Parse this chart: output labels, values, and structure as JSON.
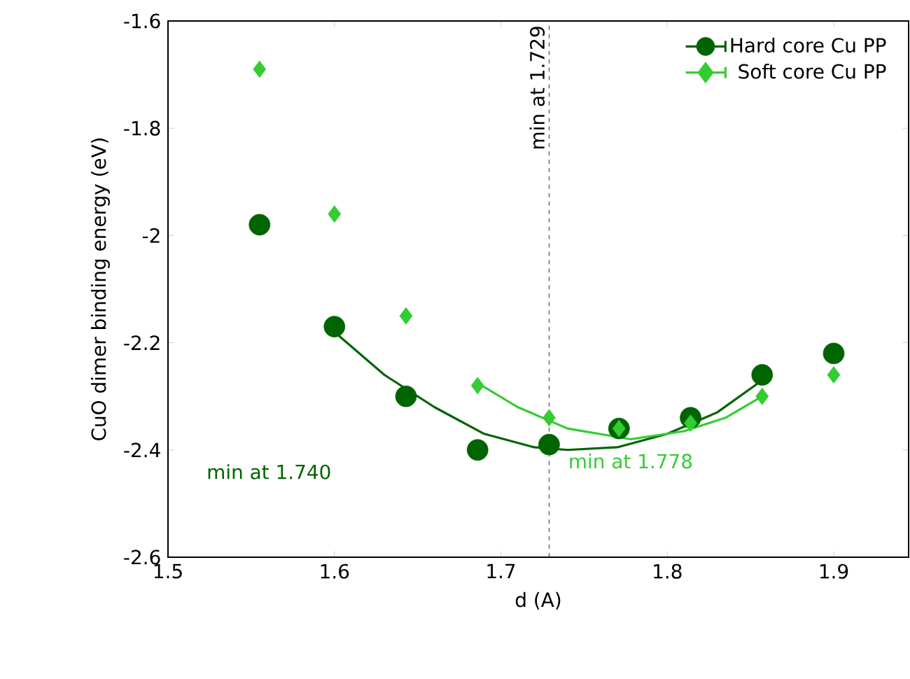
{
  "chart_data": {
    "type": "scatter",
    "xlabel": "d (A)",
    "ylabel": "CuO dimer binding energy (eV)",
    "xlim": [
      1.5,
      1.945
    ],
    "ylim": [
      -2.6,
      -1.6
    ],
    "xticks": [
      1.5,
      1.6,
      1.7,
      1.8,
      1.9
    ],
    "yticks": [
      -2.6,
      -2.4,
      -2.2,
      -2,
      -1.8,
      -1.6
    ],
    "legend": "top right",
    "grid": false,
    "series": [
      {
        "name": "Hard core Cu PP",
        "color": "#006400",
        "marker": "circle",
        "x": [
          1.555,
          1.6,
          1.643,
          1.686,
          1.729,
          1.771,
          1.814,
          1.857,
          1.9
        ],
        "values": [
          -1.98,
          -2.17,
          -2.3,
          -2.4,
          -2.39,
          -2.36,
          -2.34,
          -2.26,
          -2.22
        ]
      },
      {
        "name": "Soft core Cu PP",
        "color": "#33cc33",
        "marker": "diamond",
        "x": [
          1.555,
          1.6,
          1.643,
          1.686,
          1.729,
          1.771,
          1.814,
          1.857,
          1.9
        ],
        "values": [
          -1.69,
          -1.96,
          -2.15,
          -2.28,
          -2.34,
          -2.36,
          -2.35,
          -2.3,
          -2.26
        ]
      },
      {
        "type": "line",
        "color": "#006400",
        "marker": "none",
        "x": [
          1.6,
          1.63,
          1.66,
          1.69,
          1.72,
          1.74,
          1.77,
          1.8,
          1.83,
          1.857
        ],
        "values": [
          -2.18,
          -2.26,
          -2.32,
          -2.37,
          -2.395,
          -2.4,
          -2.395,
          -2.37,
          -2.33,
          -2.27
        ]
      },
      {
        "type": "line",
        "color": "#33cc33",
        "marker": "none",
        "x": [
          1.686,
          1.71,
          1.74,
          1.778,
          1.81,
          1.835,
          1.857
        ],
        "values": [
          -2.275,
          -2.32,
          -2.36,
          -2.38,
          -2.365,
          -2.34,
          -2.3
        ]
      }
    ],
    "ref_lines": [
      {
        "axis": "x",
        "value": 1.729,
        "label": "min at 1.729",
        "line_style": "dashed"
      }
    ],
    "annotations": [
      "min at 1.740",
      "min at 1.778"
    ]
  }
}
